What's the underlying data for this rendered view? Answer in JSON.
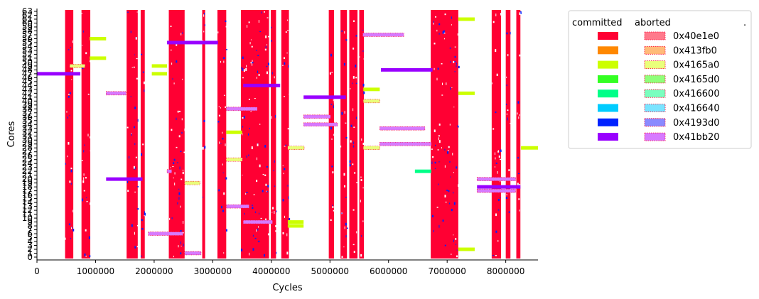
{
  "chart_data": {
    "type": "gantt",
    "xlabel": "Cycles",
    "ylabel": "Cores",
    "xlim": [
      0,
      8550000
    ],
    "ylim": [
      0,
      63
    ],
    "x_ticks": [
      0,
      1000000,
      2000000,
      3000000,
      4000000,
      5000000,
      6000000,
      7000000,
      8000000
    ],
    "y_ticks": [
      0,
      1,
      2,
      3,
      4,
      5,
      6,
      7,
      8,
      9,
      10,
      11,
      12,
      13,
      14,
      15,
      16,
      17,
      18,
      19,
      20,
      21,
      22,
      23,
      24,
      25,
      26,
      27,
      28,
      29,
      30,
      31,
      32,
      33,
      34,
      35,
      36,
      37,
      38,
      39,
      40,
      41,
      42,
      43,
      44,
      45,
      46,
      47,
      48,
      49,
      50,
      51,
      52,
      53,
      54,
      55,
      56,
      57,
      58,
      59,
      60,
      61,
      62,
      63
    ],
    "grid": false,
    "legend": {
      "placement": "outside-right",
      "committed_header": "committed",
      "aborted_header": "aborted",
      "extra_header": ".",
      "entries": [
        {
          "label": "0x40e1e0",
          "committed_color": "#ff0033",
          "aborted_color": "#ff7a8c"
        },
        {
          "label": "0x413fb0",
          "committed_color": "#ff8800",
          "aborted_color": "#ffbb7a"
        },
        {
          "label": "0x4165a0",
          "committed_color": "#ccff00",
          "aborted_color": "#eaff7a"
        },
        {
          "label": "0x4165d0",
          "committed_color": "#33ff22",
          "aborted_color": "#8fff7a"
        },
        {
          "label": "0x416600",
          "committed_color": "#00ff88",
          "aborted_color": "#7affbf"
        },
        {
          "label": "0x416640",
          "committed_color": "#00ccff",
          "aborted_color": "#7ae4ff"
        },
        {
          "label": "0x4193d0",
          "committed_color": "#0022ff",
          "aborted_color": "#8a8aff"
        },
        {
          "label": "0x41bb20",
          "committed_color": "#9900ff",
          "aborted_color": "#d77aff"
        }
      ]
    },
    "dense_bands": [
      {
        "start": 480000,
        "end": 620000
      },
      {
        "start": 760000,
        "end": 910000
      },
      {
        "start": 1530000,
        "end": 1720000
      },
      {
        "start": 1770000,
        "end": 1840000
      },
      {
        "start": 2250000,
        "end": 2520000
      },
      {
        "start": 2820000,
        "end": 2870000
      },
      {
        "start": 3080000,
        "end": 3230000
      },
      {
        "start": 3480000,
        "end": 3960000
      },
      {
        "start": 3990000,
        "end": 4080000
      },
      {
        "start": 4170000,
        "end": 4300000
      },
      {
        "start": 4980000,
        "end": 5070000
      },
      {
        "start": 5180000,
        "end": 5290000
      },
      {
        "start": 5330000,
        "end": 5470000
      },
      {
        "start": 5500000,
        "end": 5580000
      },
      {
        "start": 6720000,
        "end": 7190000
      },
      {
        "start": 7760000,
        "end": 7920000
      },
      {
        "start": 8000000,
        "end": 8080000
      },
      {
        "start": 8180000,
        "end": 8250000
      }
    ],
    "long_transactions": [
      {
        "core": 47,
        "start": 0,
        "end": 740000,
        "color": "#9900ff",
        "status": "committed"
      },
      {
        "core": 55,
        "start": 2220000,
        "end": 3090000,
        "color": "#9900ff",
        "status": "committed"
      },
      {
        "core": 44,
        "start": 3520000,
        "end": 4150000,
        "color": "#9900ff",
        "status": "committed"
      },
      {
        "core": 41,
        "start": 4550000,
        "end": 5270000,
        "color": "#9900ff",
        "status": "committed"
      },
      {
        "core": 48,
        "start": 5870000,
        "end": 6750000,
        "color": "#9900ff",
        "status": "committed"
      },
      {
        "core": 20,
        "start": 1180000,
        "end": 1800000,
        "color": "#9900ff",
        "status": "committed"
      },
      {
        "core": 18,
        "start": 7510000,
        "end": 8250000,
        "color": "#9900ff",
        "status": "committed"
      },
      {
        "core": 57,
        "start": 5560000,
        "end": 6260000,
        "color": "#d77aff",
        "status": "aborted"
      },
      {
        "core": 42,
        "start": 1180000,
        "end": 1520000,
        "color": "#d77aff",
        "status": "aborted"
      },
      {
        "core": 38,
        "start": 3230000,
        "end": 3760000,
        "color": "#d77aff",
        "status": "aborted"
      },
      {
        "core": 36,
        "start": 4550000,
        "end": 5010000,
        "color": "#d77aff",
        "status": "aborted"
      },
      {
        "core": 34,
        "start": 4550000,
        "end": 5130000,
        "color": "#d77aff",
        "status": "aborted"
      },
      {
        "core": 33,
        "start": 5850000,
        "end": 6620000,
        "color": "#d77aff",
        "status": "aborted"
      },
      {
        "core": 29,
        "start": 5850000,
        "end": 6730000,
        "color": "#d77aff",
        "status": "aborted"
      },
      {
        "core": 20,
        "start": 7510000,
        "end": 8170000,
        "color": "#d77aff",
        "status": "aborted"
      },
      {
        "core": 17,
        "start": 7510000,
        "end": 8170000,
        "color": "#d77aff",
        "status": "aborted"
      },
      {
        "core": 13,
        "start": 3230000,
        "end": 3620000,
        "color": "#d77aff",
        "status": "aborted"
      },
      {
        "core": 9,
        "start": 3520000,
        "end": 4020000,
        "color": "#d77aff",
        "status": "aborted"
      },
      {
        "core": 6,
        "start": 1900000,
        "end": 2490000,
        "color": "#d77aff",
        "status": "aborted"
      },
      {
        "core": 1,
        "start": 2520000,
        "end": 2800000,
        "color": "#d77aff",
        "status": "aborted"
      },
      {
        "core": 22,
        "start": 2220000,
        "end": 2300000,
        "color": "#d77aff",
        "status": "aborted"
      },
      {
        "core": 56,
        "start": 900000,
        "end": 1180000,
        "color": "#ccff00",
        "status": "committed"
      },
      {
        "core": 51,
        "start": 900000,
        "end": 1180000,
        "color": "#ccff00",
        "status": "committed"
      },
      {
        "core": 49,
        "start": 1960000,
        "end": 2220000,
        "color": "#ccff00",
        "status": "committed"
      },
      {
        "core": 47,
        "start": 1960000,
        "end": 2220000,
        "color": "#ccff00",
        "status": "committed"
      },
      {
        "core": 61,
        "start": 7190000,
        "end": 7470000,
        "color": "#ccff00",
        "status": "committed"
      },
      {
        "core": 42,
        "start": 7190000,
        "end": 7470000,
        "color": "#ccff00",
        "status": "committed"
      },
      {
        "core": 43,
        "start": 5570000,
        "end": 5850000,
        "color": "#ccff00",
        "status": "committed"
      },
      {
        "core": 32,
        "start": 3230000,
        "end": 3500000,
        "color": "#ccff00",
        "status": "committed"
      },
      {
        "core": 28,
        "start": 8260000,
        "end": 8550000,
        "color": "#ccff00",
        "status": "committed"
      },
      {
        "core": 9,
        "start": 4280000,
        "end": 4550000,
        "color": "#ccff00",
        "status": "committed"
      },
      {
        "core": 8,
        "start": 4280000,
        "end": 4550000,
        "color": "#ccff00",
        "status": "committed"
      },
      {
        "core": 2,
        "start": 7190000,
        "end": 7470000,
        "color": "#ccff00",
        "status": "committed"
      },
      {
        "core": 49,
        "start": 560000,
        "end": 820000,
        "color": "#eaff7a",
        "status": "aborted"
      },
      {
        "core": 19,
        "start": 2520000,
        "end": 2780000,
        "color": "#eaff7a",
        "status": "aborted"
      },
      {
        "core": 25,
        "start": 3230000,
        "end": 3500000,
        "color": "#eaff7a",
        "status": "aborted"
      },
      {
        "core": 28,
        "start": 4280000,
        "end": 4560000,
        "color": "#eaff7a",
        "status": "aborted"
      },
      {
        "core": 28,
        "start": 5570000,
        "end": 5850000,
        "color": "#eaff7a",
        "status": "aborted"
      },
      {
        "core": 40,
        "start": 5570000,
        "end": 5850000,
        "color": "#eaff7a",
        "status": "aborted"
      },
      {
        "core": 22,
        "start": 6450000,
        "end": 6730000,
        "color": "#00ff88",
        "status": "committed"
      }
    ]
  }
}
